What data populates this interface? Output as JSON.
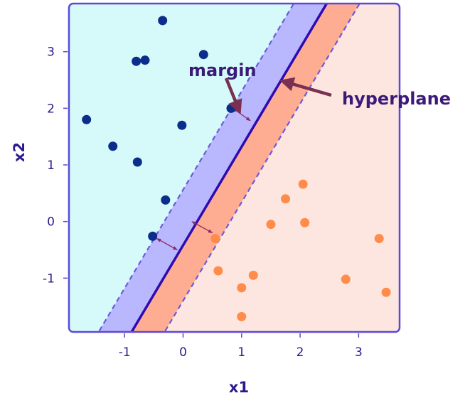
{
  "chart_data": {
    "type": "scatter",
    "xlabel": "x1",
    "ylabel": "x2",
    "xlim": [
      -1.95,
      3.7
    ],
    "ylim": [
      -1.95,
      3.85
    ],
    "xticks": [
      -1,
      0,
      1,
      2,
      3
    ],
    "yticks": [
      -1,
      0,
      1,
      2,
      3
    ],
    "grid": false,
    "hyperplane": {
      "slope": 1.74,
      "intercept": -0.42
    },
    "margin_lines": [
      {
        "slope": 1.74,
        "intercept": 0.56
      },
      {
        "slope": 1.74,
        "intercept": -1.4
      }
    ],
    "series": [
      {
        "color": "#0b2e8c",
        "points": [
          {
            "x": -0.35,
            "y": 3.55
          },
          {
            "x": 0.35,
            "y": 2.95
          },
          {
            "x": -0.8,
            "y": 2.83
          },
          {
            "x": -0.65,
            "y": 2.85
          },
          {
            "x": -1.65,
            "y": 1.8
          },
          {
            "x": -1.2,
            "y": 1.33
          },
          {
            "x": -0.78,
            "y": 1.05
          },
          {
            "x": -0.02,
            "y": 1.7
          },
          {
            "x": 0.82,
            "y": 2.0
          },
          {
            "x": -0.3,
            "y": 0.38
          },
          {
            "x": -0.52,
            "y": -0.26
          }
        ]
      },
      {
        "color": "#ff8c4a",
        "points": [
          {
            "x": 0.55,
            "y": -0.3
          },
          {
            "x": 0.6,
            "y": -0.87
          },
          {
            "x": 1.0,
            "y": -1.17
          },
          {
            "x": 1.2,
            "y": -0.95
          },
          {
            "x": 1.0,
            "y": -1.68
          },
          {
            "x": 1.5,
            "y": -0.05
          },
          {
            "x": 1.75,
            "y": 0.4
          },
          {
            "x": 2.05,
            "y": 0.66
          },
          {
            "x": 2.08,
            "y": -0.02
          },
          {
            "x": 2.78,
            "y": -1.02
          },
          {
            "x": 3.35,
            "y": -0.3
          },
          {
            "x": 3.47,
            "y": -1.25
          }
        ]
      }
    ],
    "annotations": [
      {
        "text": "margin"
      },
      {
        "text": "hyperplane"
      }
    ],
    "colors": {
      "region_upper": "#d6fafa",
      "region_lower": "#fde6e0",
      "band_upper": "#b9b8ff",
      "band_lower": "#ffad92",
      "hyperplane": "#2e0bb0",
      "margin_line": "#6b5bd9",
      "frame": "#5b48d6",
      "annotation_arrow": "#7a3050",
      "margin_marker": "#8a2a68"
    }
  }
}
